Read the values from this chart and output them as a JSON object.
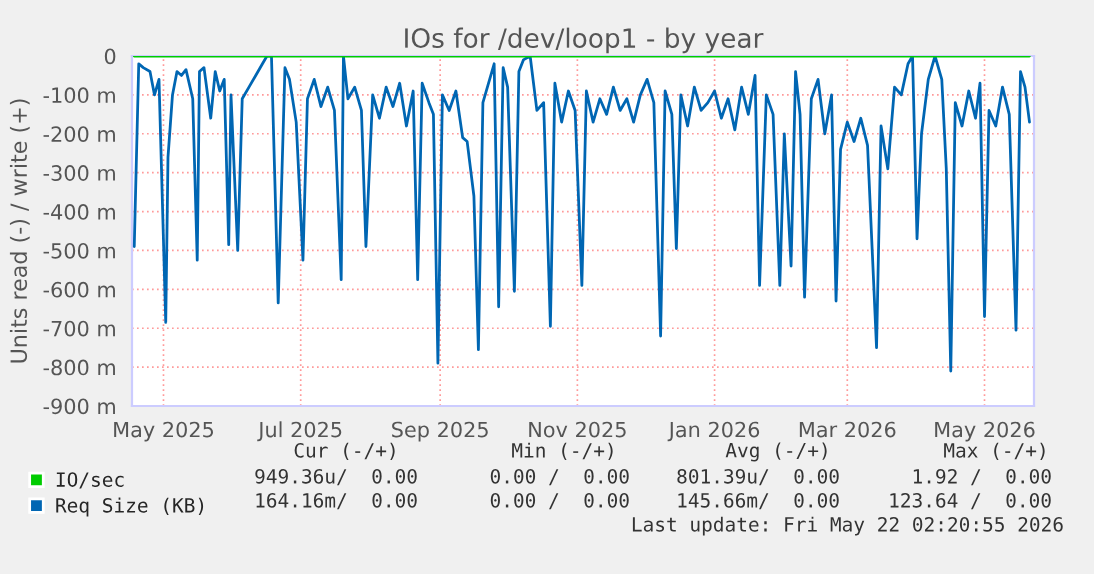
{
  "chart_data": {
    "type": "line",
    "title": "IOs for /dev/loop1 - by year",
    "ylabel": "Units read (-) / write (+)",
    "xlim": [
      "2025-04-17",
      "2026-05-23"
    ],
    "xticks": [
      {
        "value": "2025-05-01",
        "label": "May 2025"
      },
      {
        "value": "2025-07-01",
        "label": "Jul 2025"
      },
      {
        "value": "2025-09-01",
        "label": "Sep 2025"
      },
      {
        "value": "2025-11-01",
        "label": "Nov 2025"
      },
      {
        "value": "2026-01-01",
        "label": "Jan 2026"
      },
      {
        "value": "2026-03-01",
        "label": "Mar 2026"
      },
      {
        "value": "2026-05-01",
        "label": "May 2026"
      }
    ],
    "ylim": [
      -900,
      0
    ],
    "yticks": [
      {
        "value": -900,
        "label": "-900 m"
      },
      {
        "value": -800,
        "label": "-800 m"
      },
      {
        "value": -700,
        "label": "-700 m"
      },
      {
        "value": -600,
        "label": "-600 m"
      },
      {
        "value": -500,
        "label": "-500 m"
      },
      {
        "value": -400,
        "label": "-400 m"
      },
      {
        "value": -300,
        "label": "-300 m"
      },
      {
        "value": -200,
        "label": "-200 m"
      },
      {
        "value": -100,
        "label": "-100 m"
      },
      0
    ],
    "grid": true,
    "legend": "bottom",
    "series": [
      {
        "name": "Req Size (KB)",
        "color": "#0066b3",
        "x": [
          "2025-04-18",
          "2025-04-20",
          "2025-04-22",
          "2025-04-25",
          "2025-04-27",
          "2025-04-29",
          "2025-05-02",
          "2025-05-03",
          "2025-05-05",
          "2025-05-07",
          "2025-05-09",
          "2025-05-11",
          "2025-05-14",
          "2025-05-16",
          "2025-05-17",
          "2025-05-19",
          "2025-05-22",
          "2025-05-24",
          "2025-05-26",
          "2025-05-28",
          "2025-05-30",
          "2025-05-31",
          "2025-06-03",
          "2025-06-05",
          "2025-06-08",
          "2025-06-11",
          "2025-06-14",
          "2025-06-16",
          "2025-06-18",
          "2025-06-21",
          "2025-06-24",
          "2025-06-26",
          "2025-06-29",
          "2025-07-02",
          "2025-07-04",
          "2025-07-07",
          "2025-07-10",
          "2025-07-13",
          "2025-07-16",
          "2025-07-19",
          "2025-07-20",
          "2025-07-22",
          "2025-07-25",
          "2025-07-28",
          "2025-07-30",
          "2025-08-02",
          "2025-08-05",
          "2025-08-08",
          "2025-08-11",
          "2025-08-14",
          "2025-08-17",
          "2025-08-20",
          "2025-08-22",
          "2025-08-24",
          "2025-08-27",
          "2025-08-29",
          "2025-08-31",
          "2025-09-02",
          "2025-09-05",
          "2025-09-08",
          "2025-09-11",
          "2025-09-13",
          "2025-09-16",
          "2025-09-18",
          "2025-09-20",
          "2025-09-22",
          "2025-09-25",
          "2025-09-27",
          "2025-09-29",
          "2025-10-01",
          "2025-10-04",
          "2025-10-06",
          "2025-10-08",
          "2025-10-11",
          "2025-10-14",
          "2025-10-17",
          "2025-10-20",
          "2025-10-22",
          "2025-10-25",
          "2025-10-28",
          "2025-10-31",
          "2025-11-03",
          "2025-11-05",
          "2025-11-08",
          "2025-11-11",
          "2025-11-14",
          "2025-11-17",
          "2025-11-20",
          "2025-11-23",
          "2025-11-26",
          "2025-11-29",
          "2025-12-02",
          "2025-12-05",
          "2025-12-08",
          "2025-12-10",
          "2025-12-13",
          "2025-12-15",
          "2025-12-17",
          "2025-12-20",
          "2025-12-23",
          "2025-12-26",
          "2025-12-29",
          "2026-01-01",
          "2026-01-04",
          "2026-01-07",
          "2026-01-10",
          "2026-01-13",
          "2026-01-16",
          "2026-01-19",
          "2026-01-21",
          "2026-01-24",
          "2026-01-27",
          "2026-01-30",
          "2026-02-01",
          "2026-02-04",
          "2026-02-06",
          "2026-02-08",
          "2026-02-10",
          "2026-02-13",
          "2026-02-16",
          "2026-02-19",
          "2026-02-22",
          "2026-02-24",
          "2026-02-26",
          "2026-03-01",
          "2026-03-04",
          "2026-03-07",
          "2026-03-10",
          "2026-03-14",
          "2026-03-16",
          "2026-03-19",
          "2026-03-22",
          "2026-03-25",
          "2026-03-28",
          "2026-03-30",
          "2026-04-01",
          "2026-04-03",
          "2026-04-06",
          "2026-04-09",
          "2026-04-12",
          "2026-04-14",
          "2026-04-16",
          "2026-04-18",
          "2026-04-21",
          "2026-04-24",
          "2026-04-27",
          "2026-04-29",
          "2026-05-01",
          "2026-05-03",
          "2026-05-06",
          "2026-05-09",
          "2026-05-12",
          "2026-05-15",
          "2026-05-17",
          "2026-05-19",
          "2026-05-21"
        ],
        "values": [
          -490,
          -20,
          -30,
          -40,
          -100,
          -60,
          -685,
          -260,
          -100,
          -40,
          -50,
          -35,
          -110,
          -525,
          -40,
          -30,
          -160,
          -40,
          -90,
          -60,
          -485,
          -100,
          -500,
          -110,
          -80,
          -50,
          -20,
          0,
          0,
          -635,
          -30,
          -60,
          -170,
          -525,
          -110,
          -60,
          -130,
          -80,
          -140,
          -575,
          0,
          -110,
          -80,
          -140,
          -490,
          -100,
          -160,
          -80,
          -130,
          -70,
          -180,
          -90,
          -575,
          -70,
          -120,
          -150,
          -790,
          -100,
          -140,
          -90,
          -210,
          -220,
          -360,
          -755,
          -120,
          -80,
          -20,
          -645,
          -30,
          -80,
          -605,
          -40,
          -10,
          0,
          -140,
          -120,
          -695,
          -70,
          -170,
          -90,
          -140,
          -590,
          -90,
          -170,
          -110,
          -150,
          -80,
          -140,
          -110,
          -170,
          -100,
          -60,
          -120,
          -720,
          -90,
          -150,
          -495,
          -100,
          -180,
          -80,
          -140,
          -120,
          -90,
          -160,
          -110,
          -190,
          -80,
          -150,
          -50,
          -590,
          -100,
          -150,
          -590,
          -200,
          -540,
          -40,
          -150,
          -620,
          -110,
          -60,
          -200,
          -100,
          -630,
          -240,
          -170,
          -220,
          -160,
          -230,
          -750,
          -180,
          -290,
          -80,
          -100,
          -20,
          0,
          -470,
          -200,
          -60,
          0,
          -60,
          -290,
          -810,
          -120,
          -180,
          -90,
          -160,
          -70,
          -670,
          -140,
          -180,
          -80,
          -150,
          -705,
          -40,
          -80,
          -170
        ]
      },
      {
        "name": "IO/sec",
        "color": "#00cc00",
        "x": [
          "2025-04-18",
          "2026-05-21"
        ],
        "values": [
          0,
          0
        ]
      }
    ],
    "annotations": [
      "Cur (-/+)",
      "Min (-/+)",
      "Avg (-/+)",
      "Max (-/+)",
      "949.36u/  0.00",
      "0.00 /  0.00",
      "801.39u/  0.00",
      "1.92 /  0.00",
      "164.16m/  0.00",
      "0.00 /  0.00",
      "145.66m/  0.00",
      "123.64 /  0.00",
      "Last update: Fri May 22 02:20:55 2026"
    ]
  }
}
